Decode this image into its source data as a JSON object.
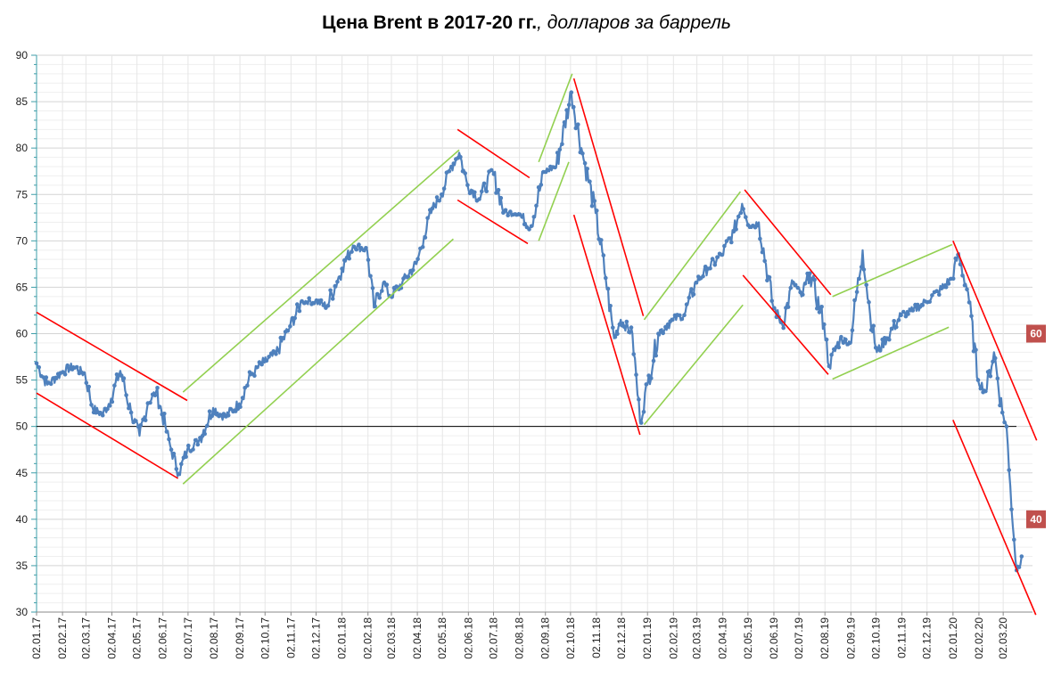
{
  "title": {
    "bold": "Цена Brent в 2017-20 гг.",
    "italic": ", долларов за баррель"
  },
  "colors": {
    "series": "#4f81bd",
    "trend_up": "#92d050",
    "trend_down": "#ff0000",
    "reference_line": "#000000",
    "badge_bg": "#c0504d",
    "grid": "#e3e3e3"
  },
  "chart_data": {
    "type": "line",
    "title": "Цена Brent в 2017-20 гг., долларов за баррель",
    "xlabel": "",
    "ylabel": "",
    "ylim": [
      30,
      90
    ],
    "yticks": [
      30,
      35,
      40,
      45,
      50,
      55,
      60,
      65,
      70,
      75,
      80,
      85,
      90
    ],
    "x_ticks": [
      "02.01.17",
      "02.02.17",
      "02.03.17",
      "02.04.17",
      "02.05.17",
      "02.06.17",
      "02.07.17",
      "02.08.17",
      "02.09.17",
      "02.10.17",
      "02.11.17",
      "02.12.17",
      "02.01.18",
      "02.02.18",
      "02.03.18",
      "02.04.18",
      "02.05.18",
      "02.06.18",
      "02.07.18",
      "02.08.18",
      "02.09.18",
      "02.10.18",
      "02.11.18",
      "02.12.18",
      "02.01.19",
      "02.02.19",
      "02.03.19",
      "02.04.19",
      "02.05.19",
      "02.06.19",
      "02.07.19",
      "02.08.19",
      "02.09.19",
      "02.10.19",
      "02.11.19",
      "02.12.19",
      "02.01.20",
      "02.02.20",
      "02.03.20"
    ],
    "grid": true,
    "legend": "none",
    "reference_line": 50,
    "series": [
      {
        "x": [
          "2017-01-02",
          "2017-01-15",
          "2017-02-01",
          "2017-02-15",
          "2017-03-01",
          "2017-03-10",
          "2017-03-22",
          "2017-04-01",
          "2017-04-12",
          "2017-04-25",
          "2017-05-05",
          "2017-05-15",
          "2017-05-25",
          "2017-06-05",
          "2017-06-12",
          "2017-06-21",
          "2017-07-01",
          "2017-07-15",
          "2017-08-01",
          "2017-08-15",
          "2017-09-01",
          "2017-09-15",
          "2017-10-01",
          "2017-10-15",
          "2017-11-01",
          "2017-11-15",
          "2017-12-01",
          "2017-12-15",
          "2018-01-02",
          "2018-01-15",
          "2018-02-01",
          "2018-02-09",
          "2018-02-20",
          "2018-03-01",
          "2018-03-15",
          "2018-04-01",
          "2018-04-10",
          "2018-04-20",
          "2018-05-01",
          "2018-05-10",
          "2018-05-22",
          "2018-06-01",
          "2018-06-15",
          "2018-07-01",
          "2018-07-15",
          "2018-08-01",
          "2018-08-15",
          "2018-09-01",
          "2018-09-15",
          "2018-10-03",
          "2018-10-15",
          "2018-11-01",
          "2018-11-13",
          "2018-11-23",
          "2018-12-01",
          "2018-12-15",
          "2018-12-24",
          "2019-01-02",
          "2019-01-15",
          "2019-02-01",
          "2019-02-15",
          "2019-03-01",
          "2019-03-15",
          "2019-04-01",
          "2019-04-15",
          "2019-04-25",
          "2019-05-05",
          "2019-05-15",
          "2019-06-01",
          "2019-06-12",
          "2019-06-25",
          "2019-07-05",
          "2019-07-15",
          "2019-08-01",
          "2019-08-07",
          "2019-08-20",
          "2019-09-01",
          "2019-09-16",
          "2019-09-25",
          "2019-10-03",
          "2019-10-15",
          "2019-11-01",
          "2019-11-15",
          "2019-12-01",
          "2019-12-15",
          "2020-01-01",
          "2020-01-08",
          "2020-01-20",
          "2020-02-01",
          "2020-02-10",
          "2020-02-20",
          "2020-03-01",
          "2020-03-06",
          "2020-03-09",
          "2020-03-18",
          "2020-03-24"
        ],
        "values": [
          56.8,
          54.5,
          55.8,
          56.5,
          55.6,
          52.0,
          51.2,
          53.0,
          56.0,
          51.5,
          49.0,
          52.5,
          53.8,
          50.0,
          47.5,
          44.9,
          47.5,
          48.5,
          52.0,
          51.0,
          52.5,
          55.5,
          57.0,
          57.8,
          60.8,
          63.5,
          63.5,
          63.0,
          67.0,
          69.5,
          69.0,
          62.8,
          65.5,
          64.0,
          65.5,
          67.5,
          70.5,
          73.5,
          75.0,
          77.5,
          79.5,
          76.0,
          74.5,
          77.5,
          73.0,
          73.0,
          71.5,
          77.5,
          78.0,
          86.0,
          80.0,
          73.0,
          66.0,
          59.5,
          61.5,
          60.0,
          50.5,
          54.5,
          60.0,
          61.5,
          62.0,
          65.5,
          67.0,
          68.5,
          71.0,
          74.0,
          71.5,
          72.0,
          63.0,
          61.0,
          65.5,
          64.0,
          66.5,
          61.0,
          56.5,
          59.5,
          59.0,
          69.0,
          62.0,
          58.0,
          59.5,
          62.0,
          62.5,
          63.5,
          64.5,
          66.0,
          68.5,
          64.5,
          55.0,
          53.8,
          58.0,
          51.5,
          50.0,
          45.3,
          34.5,
          36.0
        ]
      }
    ],
    "trend_lines": {
      "green": [
        [
          [
            "2017-06-26",
            53.7
          ],
          [
            "2018-05-22",
            79.8
          ]
        ],
        [
          [
            "2017-06-26",
            43.8
          ],
          [
            "2018-05-15",
            70.2
          ]
        ],
        [
          [
            "2018-08-25",
            78.5
          ],
          [
            "2018-10-04",
            88.0
          ]
        ],
        [
          [
            "2018-08-25",
            70.0
          ],
          [
            "2018-09-30",
            78.5
          ]
        ],
        [
          [
            "2018-12-29",
            61.5
          ],
          [
            "2019-04-23",
            75.3
          ]
        ],
        [
          [
            "2018-12-29",
            50.2
          ],
          [
            "2019-04-26",
            63.1
          ]
        ],
        [
          [
            "2019-08-11",
            64.0
          ],
          [
            "2020-01-01",
            69.6
          ]
        ],
        [
          [
            "2019-08-11",
            55.1
          ],
          [
            "2019-12-28",
            60.7
          ]
        ]
      ],
      "red": [
        [
          [
            "2017-01-02",
            62.3
          ],
          [
            "2017-07-01",
            52.8
          ]
        ],
        [
          [
            "2017-01-02",
            53.6
          ],
          [
            "2017-06-20",
            44.4
          ]
        ],
        [
          [
            "2018-05-20",
            82.0
          ],
          [
            "2018-08-14",
            76.8
          ]
        ],
        [
          [
            "2018-05-20",
            74.4
          ],
          [
            "2018-08-12",
            69.7
          ]
        ],
        [
          [
            "2018-10-06",
            87.5
          ],
          [
            "2018-12-28",
            61.9
          ]
        ],
        [
          [
            "2018-10-06",
            72.8
          ],
          [
            "2018-12-24",
            49.1
          ]
        ],
        [
          [
            "2019-04-28",
            75.5
          ],
          [
            "2019-08-09",
            64.2
          ]
        ],
        [
          [
            "2019-04-26",
            66.3
          ],
          [
            "2019-08-06",
            55.6
          ]
        ],
        [
          [
            "2020-01-02",
            70.0
          ],
          [
            "2020-04-11",
            48.5
          ]
        ],
        [
          [
            "2020-01-02",
            50.7
          ],
          [
            "2020-04-10",
            29.7
          ]
        ]
      ]
    },
    "annotations": [
      {
        "text": "60",
        "y": 60
      },
      {
        "text": "40",
        "y": 40
      }
    ]
  }
}
